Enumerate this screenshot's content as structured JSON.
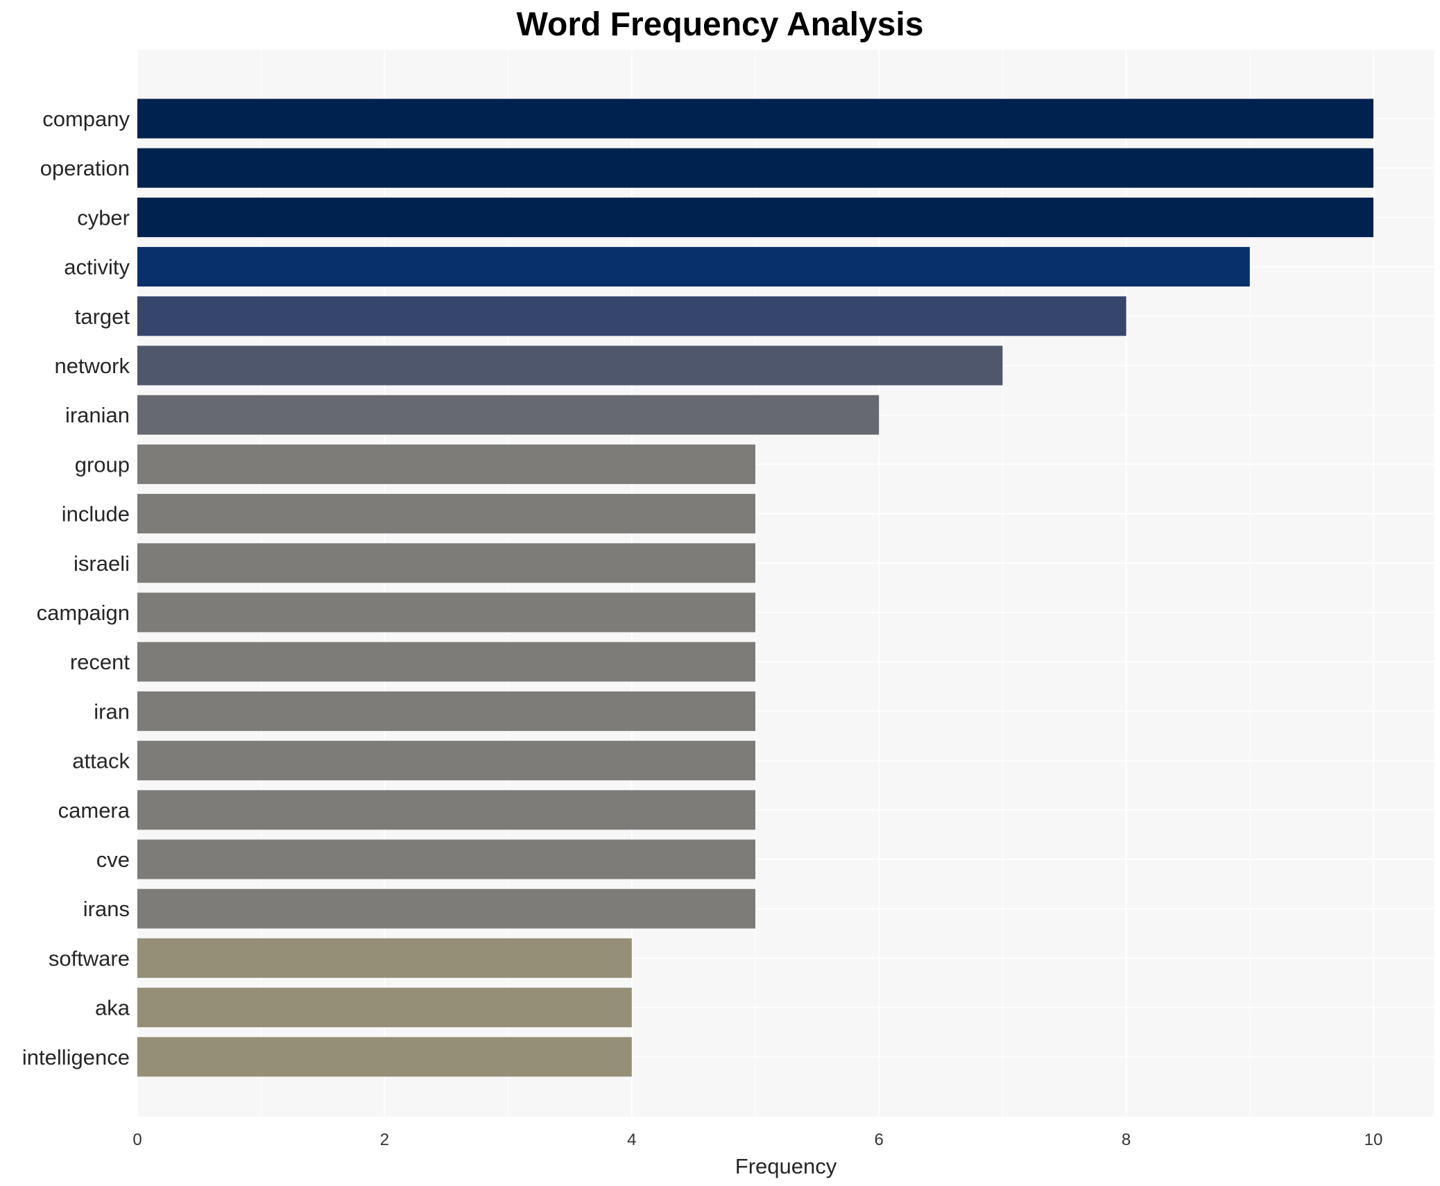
{
  "chart_data": {
    "type": "bar",
    "orientation": "horizontal",
    "title": "Word Frequency Analysis",
    "xlabel": "Frequency",
    "ylabel": "",
    "xlim": [
      0,
      10.5
    ],
    "xticks": [
      0,
      2,
      4,
      6,
      8,
      10
    ],
    "grid": true,
    "categories": [
      "company",
      "operation",
      "cyber",
      "activity",
      "target",
      "network",
      "iranian",
      "group",
      "include",
      "israeli",
      "campaign",
      "recent",
      "iran",
      "attack",
      "camera",
      "cve",
      "irans",
      "software",
      "aka",
      "intelligence"
    ],
    "values": [
      10,
      10,
      10,
      9,
      8,
      7,
      6,
      5,
      5,
      5,
      5,
      5,
      5,
      5,
      5,
      5,
      5,
      4,
      4,
      4
    ],
    "colors": [
      "#00224e",
      "#00224e",
      "#00224e",
      "#08306b",
      "#35456c",
      "#4f576c",
      "#666970",
      "#7d7c78",
      "#7d7c78",
      "#7d7c78",
      "#7d7c78",
      "#7d7c78",
      "#7d7c78",
      "#7d7c78",
      "#7d7c78",
      "#7d7c78",
      "#7d7c78",
      "#958f78",
      "#958f78",
      "#958f78"
    ],
    "plot_background": "#f7f7f7",
    "grid_color": "#ffffff"
  }
}
